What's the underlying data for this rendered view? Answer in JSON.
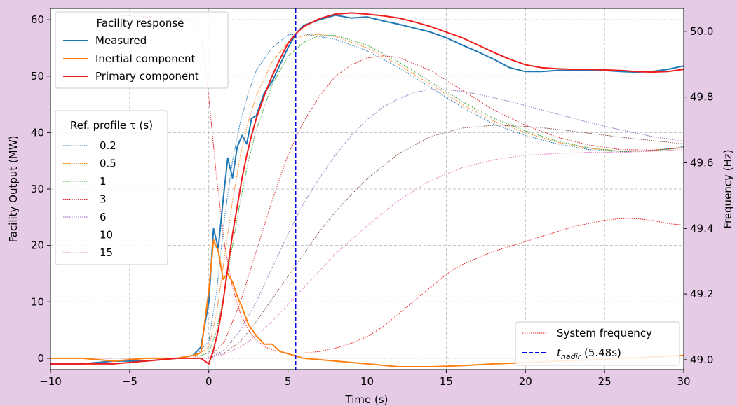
{
  "colors": {
    "background": "#e5cbe6",
    "measured": "#1f77b4",
    "inertial": "#ff7f0e",
    "primary": "#ee1c1c",
    "frequency": "#ee1c1c",
    "nadir": "#0000ee",
    "grid": "#b0b0b0"
  },
  "chart_data": {
    "type": "line",
    "xlabel": "Time (s)",
    "ylabel_left": "Facility Output (MW)",
    "ylabel_right": "Frequency (Hz)",
    "xlim": [
      -10,
      30
    ],
    "ylim_left": [
      -2,
      62
    ],
    "ylim_right": [
      48.97,
      50.07
    ],
    "x_ticks": [
      -10,
      -5,
      0,
      5,
      10,
      15,
      20,
      25,
      30
    ],
    "x_tick_labels": [
      "−10",
      "−5",
      "0",
      "5",
      "10",
      "15",
      "20",
      "25",
      "30"
    ],
    "y_ticks_left": [
      0,
      10,
      20,
      30,
      40,
      50,
      60
    ],
    "y_tick_labels_left": [
      "0",
      "10",
      "20",
      "30",
      "40",
      "50",
      "60"
    ],
    "y_ticks_right": [
      49.0,
      49.2,
      49.4,
      49.6,
      49.8,
      50.0
    ],
    "y_tick_labels_right": [
      "49.0",
      "49.2",
      "49.4",
      "49.6",
      "49.8",
      "50.0"
    ],
    "grid": true,
    "legend_facility": {
      "title": "Facility response",
      "entries": [
        "Measured",
        "Inertial component",
        "Primary component"
      ],
      "placement": "top-left"
    },
    "legend_ref": {
      "title": "Ref. profile τ (s)",
      "entries": [
        "0.2",
        "0.5",
        "1",
        "3",
        "6",
        "10",
        "15"
      ],
      "placement": "center-left"
    },
    "legend_system": {
      "entries": [
        "System frequency",
        "t_nadir (5.48s)"
      ],
      "nadir_label_main": "t",
      "nadir_label_sub": "nadir",
      "nadir_label_suffix": " (5.48s)",
      "placement": "bottom-right"
    },
    "nadir_time": 5.48,
    "series_facility": [
      {
        "name": "Measured",
        "style": "solid",
        "color": "#1f77b4",
        "x": [
          -10,
          -8,
          -6,
          -4,
          -2,
          -1,
          -0.5,
          0,
          0.3,
          0.6,
          0.9,
          1.2,
          1.5,
          1.8,
          2.1,
          2.4,
          2.7,
          3.0,
          3.5,
          4.0,
          4.5,
          5.0,
          5.5,
          6,
          7,
          8,
          9,
          10,
          11,
          12,
          13,
          14,
          15,
          16,
          17,
          18,
          19,
          20,
          21,
          22,
          23,
          24,
          25,
          26,
          27,
          28,
          29,
          30
        ],
        "y": [
          -1,
          -1,
          -0.5,
          -0.5,
          0,
          0.5,
          2,
          10,
          23,
          19.5,
          28,
          35.5,
          32,
          37.5,
          39.5,
          38,
          42.5,
          43,
          47,
          49,
          52,
          55,
          57.5,
          59,
          60,
          60.8,
          60.3,
          60.5,
          59.8,
          59.2,
          58.5,
          57.8,
          56.8,
          55.5,
          54.3,
          53,
          51.5,
          50.8,
          50.8,
          51,
          51,
          51,
          51,
          50.8,
          50.7,
          50.8,
          51.2,
          51.8
        ]
      },
      {
        "name": "Inertial component",
        "style": "solid",
        "color": "#ff7f0e",
        "x": [
          -10,
          -8,
          -6,
          -4,
          -2,
          -1,
          -0.5,
          0,
          0.3,
          0.6,
          0.9,
          1.2,
          1.5,
          1.8,
          2.1,
          2.5,
          3.0,
          3.5,
          4.0,
          4.5,
          5.0,
          6,
          8,
          10,
          12,
          14,
          16,
          18,
          20,
          22,
          24,
          26,
          28,
          30
        ],
        "y": [
          0,
          0,
          -0.5,
          0,
          0,
          0.5,
          1,
          12,
          21,
          19,
          14,
          15,
          13.5,
          11,
          9,
          6,
          4,
          2.5,
          2.5,
          1.2,
          0.8,
          0,
          -0.5,
          -1,
          -1.5,
          -1.5,
          -1.3,
          -1,
          -0.8,
          -0.5,
          -0.3,
          0,
          0.2,
          0.5
        ]
      },
      {
        "name": "Primary component",
        "style": "solid",
        "color": "#ee1c1c",
        "x": [
          -10,
          -8,
          -6,
          -4,
          -2,
          -1,
          -0.5,
          0,
          0.3,
          0.6,
          0.9,
          1.2,
          1.5,
          1.8,
          2.1,
          2.4,
          2.7,
          3.0,
          3.5,
          4.0,
          4.5,
          5.0,
          5.5,
          6,
          7,
          8,
          9,
          10,
          11,
          12,
          13,
          14,
          15,
          16,
          17,
          18,
          19,
          20,
          21,
          22,
          23,
          24,
          25,
          26,
          27,
          28,
          29,
          30
        ],
        "y": [
          -1,
          -1,
          -1,
          -0.5,
          0,
          0,
          0,
          -1,
          1.5,
          5,
          10,
          16,
          22,
          27,
          32,
          36,
          39.5,
          42.5,
          46.5,
          50,
          53,
          55.8,
          57.5,
          58.8,
          60.2,
          61,
          61.2,
          61,
          60.7,
          60.3,
          59.6,
          58.8,
          57.8,
          56.8,
          55.5,
          54.2,
          53,
          52,
          51.5,
          51.3,
          51.2,
          51.2,
          51.1,
          51,
          50.8,
          50.7,
          50.8,
          51.2
        ]
      }
    ],
    "series_reference": [
      {
        "name": "0.2",
        "style": "dotted",
        "color": "#1f77b4",
        "x": [
          -10,
          -2,
          -1,
          0,
          0.5,
          1,
          1.5,
          2,
          2.5,
          3,
          4,
          5,
          6,
          7,
          8,
          10,
          12,
          14,
          16,
          18,
          20,
          22,
          24,
          26,
          28,
          30
        ],
        "y": [
          0,
          0,
          0,
          3,
          12,
          25,
          35,
          42,
          47,
          51,
          55,
          57.3,
          57.5,
          57,
          56.5,
          54.5,
          51.5,
          48,
          44.5,
          41.5,
          39.5,
          38,
          37,
          36.6,
          36.8,
          37.5
        ]
      },
      {
        "name": "0.5",
        "style": "dotted",
        "color": "#ff7f0e",
        "x": [
          -10,
          -2,
          -1,
          0,
          0.5,
          1,
          1.5,
          2,
          2.5,
          3,
          4,
          5,
          6,
          7,
          8,
          10,
          12,
          14,
          16,
          18,
          20,
          22,
          24,
          26,
          28,
          30
        ],
        "y": [
          0,
          0,
          0,
          2,
          8,
          18,
          28,
          36,
          42,
          46.5,
          52.5,
          56,
          57.2,
          57.4,
          57,
          55,
          52,
          48.5,
          45,
          42,
          40,
          38.3,
          37.2,
          36.7,
          36.8,
          37.4
        ]
      },
      {
        "name": "1",
        "style": "dotted",
        "color": "#2ca02c",
        "x": [
          -10,
          -2,
          -1,
          0,
          0.5,
          1,
          1.5,
          2,
          2.5,
          3,
          4,
          5,
          6,
          7,
          8,
          10,
          12,
          14,
          16,
          18,
          20,
          22,
          24,
          26,
          28,
          30
        ],
        "y": [
          0,
          0,
          0,
          1,
          5,
          12,
          20,
          28,
          35,
          40.5,
          48.5,
          53.5,
          56,
          57.2,
          57.2,
          55.5,
          52.5,
          49,
          45.5,
          42.5,
          40.3,
          38.5,
          37.3,
          36.7,
          36.8,
          37.3
        ]
      },
      {
        "name": "3",
        "style": "dotted",
        "color": "#d62728",
        "x": [
          -10,
          -2,
          -1,
          0,
          1,
          2,
          3,
          4,
          5,
          6,
          7,
          8,
          9,
          10,
          11,
          12,
          14,
          16,
          18,
          20,
          22,
          24,
          26,
          28,
          30
        ],
        "y": [
          0,
          0,
          0,
          0,
          3,
          10,
          19,
          28,
          36,
          42,
          46.5,
          50,
          52,
          53.2,
          53.6,
          53.3,
          51,
          47.5,
          44,
          41.3,
          39.2,
          37.8,
          37,
          36.9,
          37.3
        ]
      },
      {
        "name": "6",
        "style": "dotted",
        "color": "#9467bd",
        "x": [
          -10,
          -2,
          -1,
          0,
          1,
          2,
          3,
          4,
          5,
          6,
          7,
          8,
          9,
          10,
          11,
          12,
          13,
          14,
          15,
          16,
          18,
          20,
          22,
          24,
          26,
          28,
          30
        ],
        "y": [
          0,
          0,
          0,
          0,
          1.5,
          5,
          10,
          16,
          22,
          27.5,
          32,
          36,
          39.5,
          42.3,
          44.5,
          46,
          47.1,
          47.6,
          47.6,
          47.3,
          46.2,
          44.8,
          43.3,
          41.8,
          40.5,
          39.3,
          38.5
        ]
      },
      {
        "name": "10",
        "style": "dotted",
        "color": "#8c564b",
        "x": [
          -10,
          -2,
          -1,
          0,
          1,
          2,
          3,
          4,
          5,
          6,
          7,
          8,
          9,
          10,
          12,
          14,
          16,
          18,
          20,
          22,
          24,
          26,
          28,
          30
        ],
        "y": [
          0,
          0,
          0,
          0,
          1,
          3,
          6.5,
          10.5,
          14.5,
          18.5,
          22.5,
          26,
          29,
          31.8,
          36.3,
          39.3,
          40.8,
          41.3,
          41.1,
          40.6,
          39.9,
          39.2,
          38.6,
          38
        ]
      },
      {
        "name": "15",
        "style": "dotted",
        "color": "#e377c2",
        "x": [
          -10,
          -2,
          -1,
          0,
          1,
          2,
          3,
          4,
          5,
          6,
          7,
          8,
          9,
          10,
          12,
          14,
          16,
          18,
          20,
          22,
          24,
          26,
          28,
          30
        ],
        "y": [
          0,
          0,
          0,
          0,
          0.7,
          2,
          4,
          6.5,
          9.5,
          12.5,
          15.5,
          18.5,
          21,
          23.5,
          28,
          31.5,
          33.8,
          35.2,
          36,
          36.3,
          36.5,
          36.5,
          36.7,
          37
        ]
      }
    ],
    "series_frequency": {
      "name": "System frequency",
      "style": "dotted",
      "color": "#ee1c1c",
      "axis": "right",
      "x": [
        -10,
        -8,
        -6,
        -4,
        -2,
        -1,
        -0.5,
        0,
        0.5,
        1,
        1.5,
        2,
        2.5,
        3,
        3.5,
        4,
        4.5,
        5,
        5.5,
        6,
        7,
        8,
        9,
        10,
        11,
        12,
        13,
        14,
        15,
        16,
        17,
        18,
        19,
        20,
        21,
        22,
        23,
        24,
        25,
        26,
        27,
        28,
        29,
        30
      ],
      "y": [
        50.05,
        50.05,
        50.05,
        50.045,
        50.04,
        50.03,
        50.0,
        49.8,
        49.55,
        49.35,
        49.22,
        49.14,
        49.09,
        49.06,
        49.04,
        49.03,
        49.025,
        49.02,
        49.02,
        49.02,
        49.025,
        49.035,
        49.05,
        49.07,
        49.1,
        49.14,
        49.18,
        49.22,
        49.26,
        49.29,
        49.31,
        49.33,
        49.345,
        49.36,
        49.375,
        49.39,
        49.405,
        49.415,
        49.425,
        49.43,
        49.43,
        49.425,
        49.415,
        49.41
      ]
    }
  }
}
